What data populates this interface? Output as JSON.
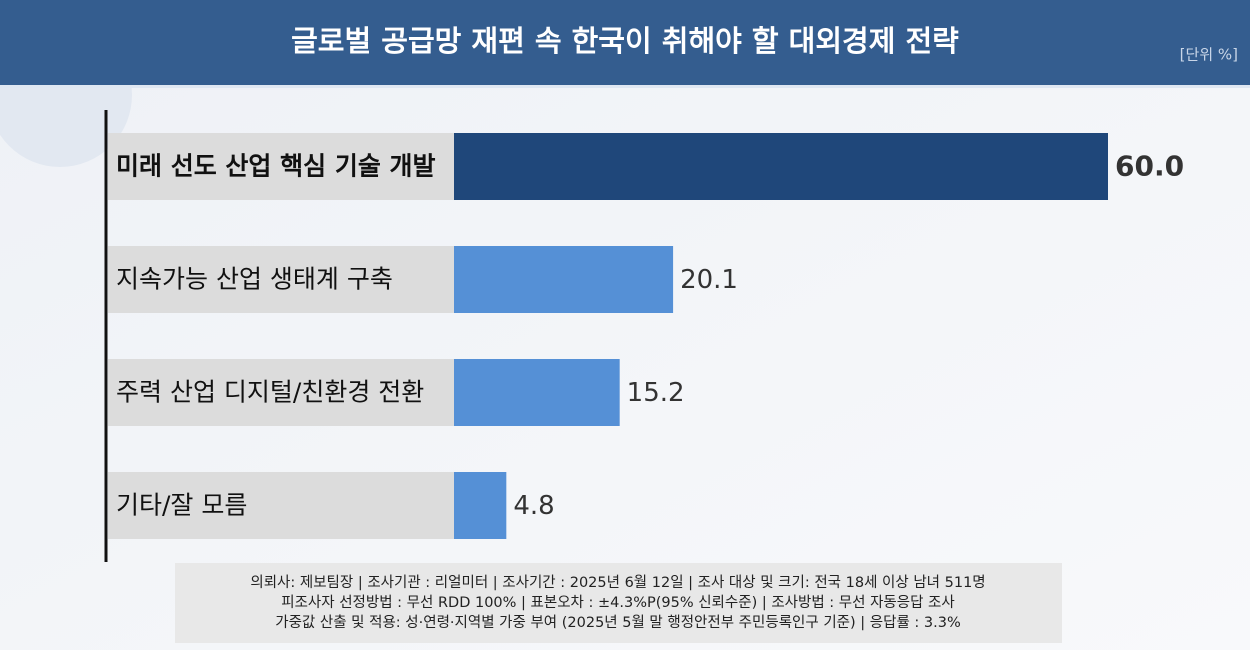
{
  "chart_data": {
    "type": "hbar",
    "title": "글로벌 공급망 재편 속 한국이 취해야 할 대외경제 전략",
    "unit": "[단위 %]",
    "categories": [
      "미래 선도 산업 핵심 기술 개발",
      "지속가능 산업 생태계 구축",
      "주력 산업 디지털/친환경 전환",
      "기타/잘 모름"
    ],
    "values": [
      60.0,
      20.1,
      15.2,
      4.8
    ],
    "value_labels": [
      "60.0",
      "20.1",
      "15.2",
      "4.8"
    ],
    "colors": [
      "#1f477a",
      "#5590d6",
      "#5590d6",
      "#5590d6"
    ],
    "xlim": [
      0,
      60
    ],
    "notes": [
      "의뢰사: 제보팀장 | 조사기관 : 리얼미터 |  조사기간 : 2025년 6월 12일 | 조사 대상 및 크기: 전국 18세 이상 남녀 511명",
      "피조사자 선정방법 : 무선 RDD 100% | 표본오차 : ±4.3%P(95% 신뢰수준) | 조사방법 : 무선 자동응답 조사",
      "가중값 산출 및 적용: 성·연령·지역별 가중 부여 (2025년 5월 말 행정안전부 주민등록인구 기준) | 응답률 : 3.3%"
    ]
  }
}
